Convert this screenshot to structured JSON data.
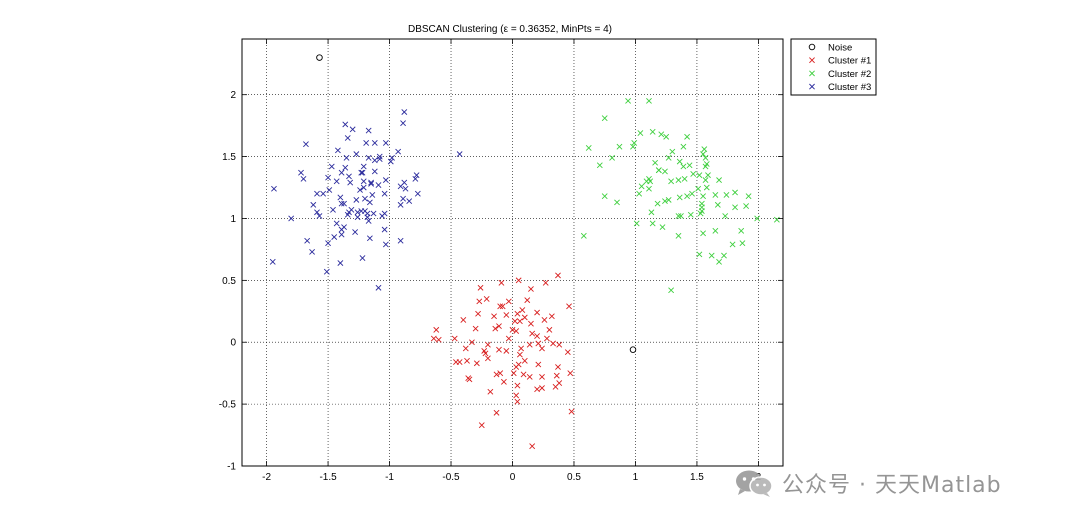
{
  "chart_data": {
    "type": "scatter",
    "title": "DBSCAN Clustering (ε = 0.36352, MinPts = 4)",
    "xlabel": "",
    "ylabel": "",
    "xlim": [
      -2.2,
      2.2
    ],
    "ylim": [
      -1,
      2.45
    ],
    "xticks": [
      -2,
      -1.5,
      -1,
      -0.5,
      0,
      0.5,
      1,
      1.5,
      2
    ],
    "yticks": [
      -1,
      -0.5,
      0,
      0.5,
      1,
      1.5,
      2
    ],
    "xtick_labels": [
      "-2",
      "-1.5",
      "-1",
      "-0.5",
      "0",
      "0.5",
      "1",
      "1.5",
      "2"
    ],
    "ytick_labels": [
      "-1",
      "-0.5",
      "0",
      "0.5",
      "1",
      "1.5",
      "2"
    ],
    "grid": true,
    "legend_position": "outside-top-right",
    "series": [
      {
        "name": "Noise",
        "marker": "o",
        "color": "#000000",
        "points": [
          [
            -1.57,
            2.3
          ],
          [
            0.98,
            -0.06
          ]
        ]
      },
      {
        "name": "Cluster #1",
        "marker": "x",
        "color": "#d81e1e",
        "points": [
          [
            -0.46,
            -0.16
          ],
          [
            -0.14,
            0.11
          ],
          [
            -0.43,
            -0.16
          ],
          [
            0.05,
            -0.18
          ],
          [
            -0.11,
            0.13
          ],
          [
            0.14,
            -0.28
          ],
          [
            -0.6,
            0.02
          ],
          [
            0.06,
            0.17
          ],
          [
            -0.11,
            -0.06
          ],
          [
            -0.27,
            0.33
          ],
          [
            0.37,
            -0.2
          ],
          [
            0.08,
            0.26
          ],
          [
            0.09,
            -0.26
          ],
          [
            0.04,
            -0.48
          ],
          [
            -0.28,
            0.23
          ],
          [
            0.2,
            -0.38
          ],
          [
            0.02,
            0.17
          ],
          [
            -0.13,
            -0.26
          ],
          [
            -0.35,
            -0.3
          ],
          [
            -0.03,
            0.33
          ],
          [
            0.27,
            0.48
          ],
          [
            0.03,
            -0.43
          ],
          [
            0.05,
            0.5
          ],
          [
            -0.22,
            -0.09
          ],
          [
            0.32,
            0.21
          ],
          [
            -0.18,
            -0.4
          ],
          [
            0.48,
            -0.56
          ],
          [
            -0.15,
            0.21
          ],
          [
            -0.05,
            -0.07
          ],
          [
            -0.37,
            -0.15
          ],
          [
            -0.3,
            0.11
          ],
          [
            0.2,
            0.05
          ],
          [
            -0.29,
            -0.17
          ],
          [
            0.07,
            -0.05
          ],
          [
            0.24,
            -0.28
          ],
          [
            -0.13,
            -0.57
          ],
          [
            0.16,
            0.07
          ],
          [
            -0.05,
            0.22
          ],
          [
            -0.2,
            -0.02
          ],
          [
            0.15,
            0.15
          ],
          [
            0.47,
            -0.25
          ],
          [
            0.38,
            -0.02
          ],
          [
            -0.62,
            0.1
          ],
          [
            0.33,
            -0.01
          ],
          [
            0.2,
            0.24
          ],
          [
            -0.1,
            0.29
          ],
          [
            0.1,
            0.2
          ],
          [
            0.45,
            -0.08
          ],
          [
            -0.1,
            -0.25
          ],
          [
            0.16,
            -0.84
          ],
          [
            0.24,
            -0.37
          ],
          [
            -0.4,
            0.18
          ],
          [
            0.21,
            -0.01
          ],
          [
            0.37,
            0.54
          ],
          [
            -0.2,
            -0.13
          ],
          [
            0.28,
            0.03
          ],
          [
            -0.47,
            0.03
          ],
          [
            -0.25,
            -0.67
          ],
          [
            0.38,
            -0.33
          ],
          [
            -0.36,
            -0.29
          ],
          [
            0.14,
            -0.02
          ],
          [
            0.3,
            0.1
          ],
          [
            0.04,
            0.23
          ],
          [
            0.35,
            -0.36
          ],
          [
            -0.08,
            0.29
          ],
          [
            -0.23,
            -0.07
          ],
          [
            0.26,
            0.18
          ],
          [
            -0.07,
            -0.32
          ],
          [
            0.03,
            -0.2
          ],
          [
            0.36,
            -0.27
          ],
          [
            -0.21,
            0.35
          ],
          [
            0.03,
            0.09
          ],
          [
            0.04,
            -0.35
          ],
          [
            -0.26,
            0.44
          ],
          [
            0.46,
            0.29
          ],
          [
            -0.09,
            0.48
          ],
          [
            0.24,
            -0.05
          ],
          [
            0.0,
            0.1
          ],
          [
            0.06,
            -0.1
          ],
          [
            -0.38,
            -0.05
          ],
          [
            0.15,
            0.43
          ],
          [
            -0.03,
            0.03
          ],
          [
            0.21,
            -0.18
          ],
          [
            0.1,
            -0.15
          ],
          [
            -0.33,
            0.0
          ],
          [
            0.12,
            0.34
          ],
          [
            0.01,
            -0.25
          ],
          [
            -0.64,
            0.03
          ]
        ]
      },
      {
        "name": "Cluster #2",
        "marker": "x",
        "color": "#3ecf3e",
        "points": [
          [
            0.94,
            1.95
          ],
          [
            1.11,
            1.95
          ],
          [
            0.75,
            1.81
          ],
          [
            1.55,
            1.52
          ],
          [
            1.54,
            1.12
          ],
          [
            1.92,
            1.18
          ],
          [
            1.73,
            1.02
          ],
          [
            1.81,
            1.21
          ],
          [
            0.87,
            1.58
          ],
          [
            1.44,
            1.43
          ],
          [
            1.03,
            1.2
          ],
          [
            1.59,
            1.35
          ],
          [
            1.57,
            1.49
          ],
          [
            1.72,
            0.7
          ],
          [
            1.29,
            1.3
          ],
          [
            1.21,
            1.68
          ],
          [
            1.12,
            1.3
          ],
          [
            1.39,
            1.58
          ],
          [
            0.85,
            1.13
          ],
          [
            1.4,
            1.32
          ],
          [
            1.27,
            1.15
          ],
          [
            1.58,
            1.44
          ],
          [
            0.99,
            1.61
          ],
          [
            1.54,
            1.06
          ],
          [
            1.19,
            1.39
          ],
          [
            1.36,
            1.17
          ],
          [
            1.13,
            1.05
          ],
          [
            0.98,
            1.58
          ],
          [
            1.86,
            0.9
          ],
          [
            1.99,
            1.0
          ],
          [
            1.24,
            1.14
          ],
          [
            1.87,
            0.8
          ],
          [
            1.67,
            1.11
          ],
          [
            1.45,
            1.03
          ],
          [
            1.11,
            1.24
          ],
          [
            1.01,
            0.96
          ],
          [
            1.22,
            0.93
          ],
          [
            1.68,
            1.31
          ],
          [
            1.46,
            1.2
          ],
          [
            1.55,
            0.88
          ],
          [
            1.11,
            1.32
          ],
          [
            0.75,
            1.18
          ],
          [
            1.36,
            1.46
          ],
          [
            1.56,
            1.56
          ],
          [
            1.65,
            1.19
          ],
          [
            1.14,
            0.96
          ],
          [
            1.19,
            1.39
          ],
          [
            1.57,
            1.42
          ],
          [
            1.16,
            1.45
          ],
          [
            1.65,
            0.9
          ],
          [
            1.24,
            1.38
          ],
          [
            1.57,
            1.31
          ],
          [
            1.54,
            1.09
          ],
          [
            1.68,
            0.65
          ],
          [
            1.52,
            1.35
          ],
          [
            1.37,
            1.02
          ],
          [
            1.51,
            1.24
          ],
          [
            1.18,
            1.12
          ],
          [
            1.35,
            0.86
          ],
          [
            1.27,
            1.49
          ],
          [
            1.04,
            1.69
          ],
          [
            1.47,
            1.36
          ],
          [
            1.79,
            0.79
          ],
          [
            1.29,
            0.42
          ],
          [
            0.58,
            0.86
          ],
          [
            1.14,
            1.7
          ],
          [
            0.71,
            1.43
          ],
          [
            0.62,
            1.57
          ],
          [
            1.53,
            1.04
          ],
          [
            1.74,
            1.19
          ],
          [
            1.42,
            1.18
          ],
          [
            1.35,
            1.31
          ],
          [
            1.9,
            1.1
          ],
          [
            1.62,
            0.7
          ],
          [
            1.81,
            1.09
          ],
          [
            1.42,
            1.66
          ],
          [
            1.3,
            1.54
          ],
          [
            1.52,
            0.71
          ],
          [
            1.58,
            1.25
          ],
          [
            1.09,
            1.3
          ],
          [
            1.25,
            1.66
          ],
          [
            1.39,
            1.42
          ],
          [
            0.81,
            1.49
          ],
          [
            1.35,
            1.02
          ],
          [
            2.15,
            0.99
          ],
          [
            1.55,
            1.18
          ],
          [
            1.05,
            1.26
          ]
        ]
      },
      {
        "name": "Cluster #3",
        "marker": "x",
        "color": "#2a2a9c",
        "points": [
          [
            -1.51,
            0.57
          ],
          [
            -1.22,
            0.68
          ],
          [
            -1.19,
            1.61
          ],
          [
            -1.34,
            1.65
          ],
          [
            -1.45,
            0.85
          ],
          [
            -1.26,
            1.01
          ],
          [
            -1.04,
            0.91
          ],
          [
            -1.2,
            1.06
          ],
          [
            -1.59,
            1.2
          ],
          [
            -1.33,
            1.34
          ],
          [
            -1.62,
            1.11
          ],
          [
            -1.27,
            1.15
          ],
          [
            -1.08,
            1.5
          ],
          [
            -1.39,
            0.91
          ],
          [
            -1.23,
            1.37
          ],
          [
            -1.15,
            1.29
          ],
          [
            -1.39,
            1.12
          ],
          [
            -1.14,
            1.19
          ],
          [
            -1.7,
            1.32
          ],
          [
            -1.28,
            0.89
          ],
          [
            -0.91,
            1.11
          ],
          [
            -1.18,
            1.04
          ],
          [
            -1.63,
            0.73
          ],
          [
            -1.34,
            1.03
          ],
          [
            -1.03,
            1.31
          ],
          [
            -1.57,
            1.02
          ],
          [
            -1.35,
            1.49
          ],
          [
            -1.21,
            1.25
          ],
          [
            -1.43,
            0.96
          ],
          [
            -1.16,
            0.84
          ],
          [
            -1.36,
            1.41
          ],
          [
            -1.24,
            1.23
          ],
          [
            -1.46,
            1.07
          ],
          [
            -1.08,
            1.48
          ],
          [
            -0.77,
            1.2
          ],
          [
            -1.18,
            1.01
          ],
          [
            -0.91,
            1.26
          ],
          [
            -0.79,
            1.32
          ],
          [
            -1.13,
            1.04
          ],
          [
            -1.09,
            1.27
          ],
          [
            -1.47,
            1.42
          ],
          [
            -1.27,
            1.52
          ],
          [
            -1.32,
            1.29
          ],
          [
            -1.16,
            1.13
          ],
          [
            -1.49,
            1.23
          ],
          [
            -1.4,
            1.17
          ],
          [
            -1.42,
            1.55
          ],
          [
            -1.03,
            0.79
          ],
          [
            -1.31,
            1.07
          ],
          [
            -1.4,
            0.64
          ],
          [
            -1.67,
            0.82
          ],
          [
            -1.04,
            1.04
          ],
          [
            -1.17,
            1.71
          ],
          [
            -1.22,
            1.37
          ],
          [
            -1.37,
            0.93
          ],
          [
            -1.12,
            1.47
          ],
          [
            -1.17,
            1.49
          ],
          [
            -1.54,
            1.2
          ],
          [
            -1.39,
            1.37
          ],
          [
            -0.93,
            1.54
          ],
          [
            -2.24,
            1.42
          ],
          [
            -1.5,
            0.8
          ],
          [
            -1.39,
            0.87
          ],
          [
            -1.3,
            1.72
          ],
          [
            -1.04,
            1.2
          ],
          [
            -1.03,
            1.61
          ],
          [
            -1.06,
            1.02
          ],
          [
            -1.8,
            1.0
          ],
          [
            -1.95,
            0.65
          ],
          [
            -1.09,
            0.44
          ],
          [
            -0.89,
            1.16
          ],
          [
            -1.12,
            1.61
          ],
          [
            -0.98,
            1.49
          ],
          [
            -1.5,
            1.33
          ],
          [
            -1.36,
            1.76
          ],
          [
            -0.84,
            1.14
          ],
          [
            -1.72,
            1.37
          ],
          [
            -1.17,
            0.98
          ],
          [
            -1.21,
            1.42
          ],
          [
            -0.91,
            0.82
          ],
          [
            -0.78,
            1.35
          ],
          [
            -1.12,
            1.38
          ],
          [
            -1.94,
            1.24
          ],
          [
            -1.43,
            1.3
          ],
          [
            -0.88,
            1.29
          ],
          [
            -1.26,
            1.05
          ],
          [
            -0.99,
            1.46
          ],
          [
            -0.43,
            1.52
          ],
          [
            -1.15,
            1.28
          ],
          [
            -1.68,
            1.6
          ],
          [
            -1.33,
            1.05
          ],
          [
            -1.2,
            1.16
          ],
          [
            -1.59,
            1.05
          ],
          [
            -0.87,
            1.24
          ],
          [
            -1.37,
            1.12
          ],
          [
            -1.21,
            1.3
          ],
          [
            -1.23,
            1.06
          ],
          [
            -0.89,
            1.77
          ],
          [
            -0.88,
            1.86
          ]
        ]
      }
    ]
  },
  "watermark": {
    "text": "公众号 · 天天Matlab",
    "icon": "wechat-icon"
  }
}
